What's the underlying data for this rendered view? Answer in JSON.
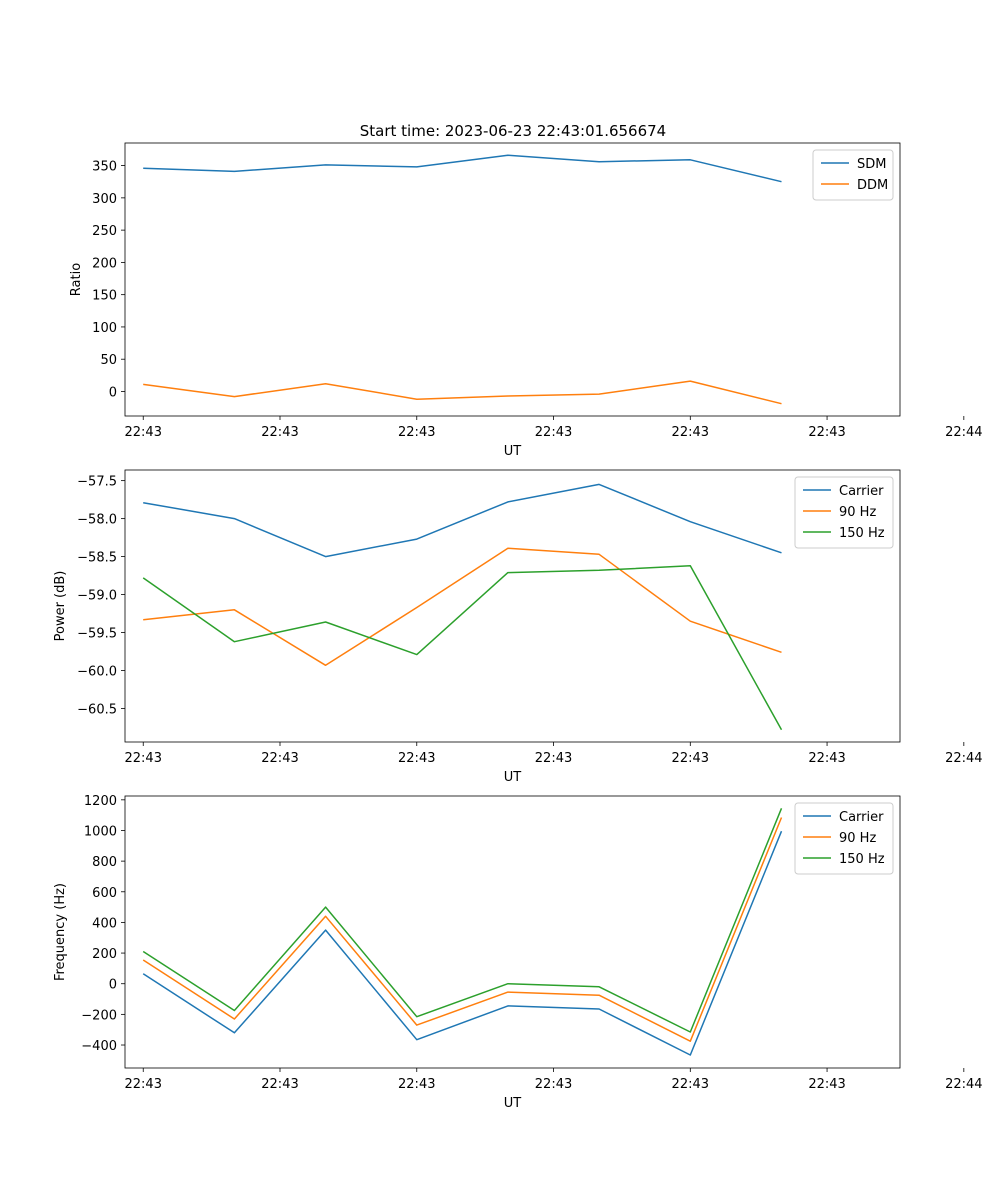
{
  "title": "Start time: 2023-06-23 22:43:01.656674",
  "chart_data": [
    {
      "type": "line",
      "x": [
        1,
        2,
        3,
        4,
        5,
        6,
        7,
        8
      ],
      "xlim": [
        0.8,
        9.3
      ],
      "x_ticks": [
        1,
        2.5,
        4,
        5.5,
        7,
        8.5,
        10
      ],
      "x_ticklabels": [
        "22:43",
        "22:43",
        "22:43",
        "22:43",
        "22:43",
        "22:43",
        "22:44"
      ],
      "xlabel": "UT",
      "ylabel": "Ratio",
      "ylim": [
        -38,
        385
      ],
      "y_ticks": [
        0,
        50,
        100,
        150,
        200,
        250,
        300,
        350
      ],
      "y_ticklabels": [
        "0",
        "50",
        "100",
        "150",
        "200",
        "250",
        "300",
        "350"
      ],
      "legend": "top-right",
      "series": [
        {
          "name": "SDM",
          "color": "#1f77b4",
          "values": [
            346,
            341,
            351,
            348,
            366,
            356,
            359,
            325
          ]
        },
        {
          "name": "DDM",
          "color": "#ff7f0e",
          "values": [
            11,
            -8,
            12,
            -12,
            -7,
            -4,
            16,
            -19
          ]
        }
      ]
    },
    {
      "type": "line",
      "x": [
        1,
        2,
        3,
        4,
        5,
        6,
        7,
        8
      ],
      "xlim": [
        0.8,
        9.3
      ],
      "x_ticks": [
        1,
        2.5,
        4,
        5.5,
        7,
        8.5,
        10
      ],
      "x_ticklabels": [
        "22:43",
        "22:43",
        "22:43",
        "22:43",
        "22:43",
        "22:43",
        "22:44"
      ],
      "xlabel": "UT",
      "ylabel": "Power (dB)",
      "ylim": [
        -60.94,
        -57.36
      ],
      "y_ticks": [
        -60.5,
        -60.0,
        -59.5,
        -59.0,
        -58.5,
        -58.0,
        -57.5
      ],
      "y_ticklabels": [
        "−60.5",
        "−60.0",
        "−59.5",
        "−59.0",
        "−58.5",
        "−58.0",
        "−57.5"
      ],
      "legend": "top-right",
      "series": [
        {
          "name": "Carrier",
          "color": "#1f77b4",
          "values": [
            -57.79,
            -58.0,
            -58.5,
            -58.27,
            -57.78,
            -57.55,
            -58.04,
            -58.45
          ]
        },
        {
          "name": "90 Hz",
          "color": "#ff7f0e",
          "values": [
            -59.33,
            -59.2,
            -59.93,
            -59.17,
            -58.39,
            -58.47,
            -59.35,
            -59.76
          ]
        },
        {
          "name": "150 Hz",
          "color": "#2ca02c",
          "values": [
            -58.78,
            -59.62,
            -59.36,
            -59.79,
            -58.71,
            -58.68,
            -58.62,
            -60.78
          ]
        }
      ]
    },
    {
      "type": "line",
      "x": [
        1,
        2,
        3,
        4,
        5,
        6,
        7,
        8
      ],
      "xlim": [
        0.8,
        9.3
      ],
      "x_ticks": [
        1,
        2.5,
        4,
        5.5,
        7,
        8.5,
        10
      ],
      "x_ticklabels": [
        "22:43",
        "22:43",
        "22:43",
        "22:43",
        "22:43",
        "22:43",
        "22:44"
      ],
      "xlabel": "UT",
      "ylabel": "Frequency (Hz)",
      "ylim": [
        -550,
        1225
      ],
      "y_ticks": [
        -400,
        -200,
        0,
        200,
        400,
        600,
        800,
        1000,
        1200
      ],
      "y_ticklabels": [
        "−400",
        "−200",
        "0",
        "200",
        "400",
        "600",
        "800",
        "1000",
        "1200"
      ],
      "legend": "top-right",
      "series": [
        {
          "name": "Carrier",
          "color": "#1f77b4",
          "values": [
            65,
            -320,
            350,
            -365,
            -145,
            -165,
            -465,
            995
          ]
        },
        {
          "name": "90 Hz",
          "color": "#ff7f0e",
          "values": [
            155,
            -230,
            440,
            -270,
            -55,
            -75,
            -375,
            1085
          ]
        },
        {
          "name": "150 Hz",
          "color": "#2ca02c",
          "values": [
            210,
            -175,
            500,
            -215,
            0,
            -20,
            -315,
            1145
          ]
        }
      ]
    }
  ]
}
